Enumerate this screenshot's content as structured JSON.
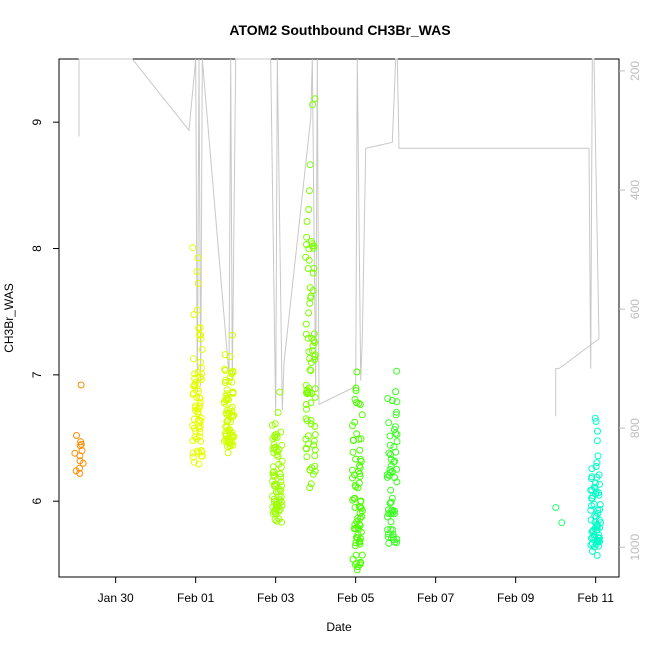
{
  "chart_data": {
    "type": "scatter",
    "title": "ATOM2 Southbound CH3Br_WAS",
    "xlabel": "Date",
    "ylabel": "CH3Br_WAS",
    "xlim": [
      "2017-01-28T14:00",
      "2017-02-11T14:00"
    ],
    "ylim": [
      5.4,
      9.5
    ],
    "x_ticks": [
      {
        "label": "Jan 30",
        "date": "2017-01-30"
      },
      {
        "label": "Feb 01",
        "date": "2017-02-01"
      },
      {
        "label": "Feb 03",
        "date": "2017-02-03"
      },
      {
        "label": "Feb 05",
        "date": "2017-02-05"
      },
      {
        "label": "Feb 07",
        "date": "2017-02-07"
      },
      {
        "label": "Feb 09",
        "date": "2017-02-09"
      },
      {
        "label": "Feb 11",
        "date": "2017-02-11"
      }
    ],
    "y_ticks": [
      6,
      7,
      8,
      9
    ],
    "secondary_axis": {
      "label": "",
      "range": [
        180,
        1050
      ],
      "reversed": true,
      "ticks": [
        200,
        400,
        600,
        800,
        1000
      ],
      "color": "#bdbdbd"
    },
    "grid": false,
    "clusters": [
      {
        "day": "2017-01-29T01:30",
        "color": "#ff8c00",
        "count": 13,
        "y_min": 6.22,
        "y_max": 6.92,
        "values": [
          6.22,
          6.24,
          6.26,
          6.3,
          6.32,
          6.36,
          6.38,
          6.4,
          6.44,
          6.45,
          6.47,
          6.52,
          6.92
        ]
      },
      {
        "day": "2017-02-01T01:00",
        "color": "#e5ff00",
        "count": 70,
        "y_min": 6.25,
        "y_max": 8.05
      },
      {
        "day": "2017-02-01T20:00",
        "color": "#d2ff00",
        "count": 70,
        "y_min": 6.38,
        "y_max": 7.35
      },
      {
        "day": "2017-02-03T01:00",
        "color": "#9cff00",
        "count": 70,
        "y_min": 5.82,
        "y_max": 6.9
      },
      {
        "day": "2017-02-03T21:00",
        "color": "#7dff00",
        "count": 80,
        "y_min": 5.95,
        "y_max": 9.33
      },
      {
        "day": "2017-02-05T01:00",
        "color": "#4cff00",
        "count": 75,
        "y_min": 5.45,
        "y_max": 7.3
      },
      {
        "day": "2017-02-05T22:00",
        "color": "#38ff20",
        "count": 60,
        "y_min": 5.6,
        "y_max": 7.4
      },
      {
        "day": "2017-02-10T01:00",
        "color": "#20ff70",
        "count": 2,
        "y_min": 5.83,
        "y_max": 5.95,
        "values": [
          5.83,
          5.95
        ]
      },
      {
        "day": "2017-02-11T00:00",
        "color": "#00ffc8",
        "count": 70,
        "y_min": 5.55,
        "y_max": 6.72
      }
    ],
    "altitude_track": [
      [
        "2017-01-29T02:00",
        180
      ],
      [
        "2017-01-29T02:00",
        310
      ],
      [
        "2017-01-29T02:00",
        180
      ],
      [
        "2017-01-30T10:00",
        180
      ],
      [
        "2017-01-31T20:00",
        300
      ],
      [
        "2017-02-01T00:00",
        180
      ],
      [
        "2017-02-01T01:00",
        740
      ],
      [
        "2017-02-01T02:00",
        180
      ],
      [
        "2017-02-01T03:00",
        730
      ],
      [
        "2017-02-01T04:00",
        180
      ],
      [
        "2017-02-01T20:00",
        710
      ],
      [
        "2017-02-01T21:00",
        180
      ],
      [
        "2017-02-01T22:00",
        720
      ],
      [
        "2017-02-02T00:00",
        180
      ],
      [
        "2017-02-02T21:00",
        180
      ],
      [
        "2017-02-03T00:00",
        780
      ],
      [
        "2017-02-03T01:00",
        180
      ],
      [
        "2017-02-03T04:00",
        770
      ],
      [
        "2017-02-03T05:00",
        690
      ],
      [
        "2017-02-03T21:00",
        280
      ],
      [
        "2017-02-03T22:00",
        180
      ],
      [
        "2017-02-04T00:00",
        740
      ],
      [
        "2017-02-04T01:00",
        180
      ],
      [
        "2017-02-04T02:00",
        760
      ],
      [
        "2017-02-05T00:00",
        730
      ],
      [
        "2017-02-05T01:00",
        180
      ],
      [
        "2017-02-05T03:00",
        720
      ],
      [
        "2017-02-05T04:00",
        650
      ],
      [
        "2017-02-05T06:00",
        330
      ],
      [
        "2017-02-05T22:00",
        320
      ],
      [
        "2017-02-06T00:00",
        180
      ],
      [
        "2017-02-06T01:00",
        180
      ],
      [
        "2017-02-06T02:00",
        330
      ],
      [
        "2017-02-10T20:00",
        330
      ],
      [
        "2017-02-10T21:00",
        700
      ],
      [
        "2017-02-10T22:00",
        180
      ],
      [
        "2017-02-10T23:00",
        180
      ],
      [
        "2017-02-11T02:00",
        650
      ],
      [
        "2017-02-10T02:00",
        700
      ],
      [
        "2017-02-10T00:00",
        700
      ],
      [
        "2017-02-10T00:00",
        780
      ]
    ]
  }
}
